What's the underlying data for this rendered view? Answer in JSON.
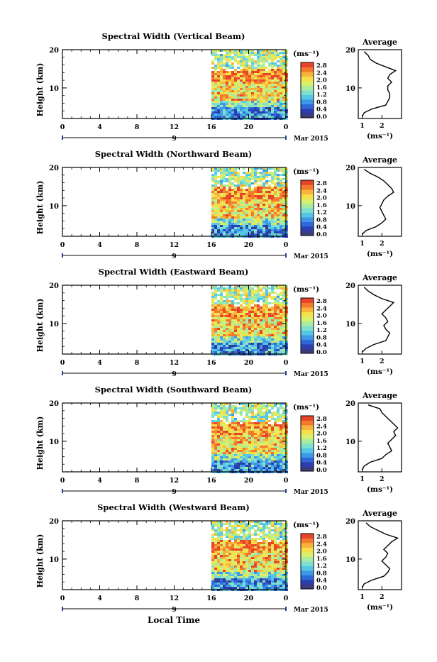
{
  "chart_data": [
    {
      "type": "heatmap",
      "title": "Spectral Width (Vertical Beam)",
      "ylabel": "Height (km)",
      "xticks": [
        "0",
        "4",
        "8",
        "12",
        "16",
        "20",
        "0"
      ],
      "xlim": [
        0,
        24
      ],
      "ylim": [
        2,
        20
      ],
      "yticks": [
        "20",
        "10"
      ],
      "date_marker": "9",
      "date_label": "Mar 2015",
      "data_start_hour": 16,
      "colorbar": {
        "unit": "(ms⁻¹)",
        "ticks": [
          "2.8",
          "2.4",
          "2.0",
          "1.6",
          "1.2",
          "0.8",
          "0.4",
          "0.0"
        ]
      },
      "average": {
        "title": "Average",
        "xlabel": "(ms⁻¹)",
        "xticks": [
          "1",
          "2"
        ],
        "yticks": [
          "20",
          "10"
        ],
        "xlim": [
          0.8,
          3.0
        ],
        "height_km": [
          2.5,
          3.5,
          4.5,
          5.5,
          6.5,
          7.5,
          8.5,
          9.5,
          10.5,
          11.5,
          12.5,
          13.5,
          14.5,
          15.5,
          16.5,
          17.5,
          18.5,
          19.5
        ],
        "values": [
          1.0,
          1.1,
          1.5,
          2.2,
          2.3,
          2.4,
          2.4,
          2.3,
          2.3,
          2.5,
          2.3,
          2.4,
          2.7,
          2.2,
          1.7,
          1.4,
          1.3,
          1.1
        ]
      }
    },
    {
      "type": "heatmap",
      "title": "Spectral Width (Northward Beam)",
      "ylabel": "Height (km)",
      "xticks": [
        "0",
        "4",
        "8",
        "12",
        "16",
        "20",
        "0"
      ],
      "xlim": [
        0,
        24
      ],
      "ylim": [
        2,
        20
      ],
      "yticks": [
        "20",
        "10"
      ],
      "date_marker": "9",
      "date_label": "Mar 2015",
      "data_start_hour": 16,
      "colorbar": {
        "unit": "(ms⁻¹)",
        "ticks": [
          "2.8",
          "2.4",
          "2.0",
          "1.6",
          "1.2",
          "0.8",
          "0.4",
          "0.0"
        ]
      },
      "average": {
        "title": "Average",
        "xlabel": "(ms⁻¹)",
        "xticks": [
          "1",
          "2"
        ],
        "yticks": [
          "20",
          "10"
        ],
        "xlim": [
          0.8,
          3.0
        ],
        "height_km": [
          2.5,
          3.5,
          4.5,
          5.5,
          6.5,
          7.5,
          8.5,
          9.5,
          10.5,
          11.5,
          12.5,
          13.5,
          14.5,
          15.5,
          16.5,
          17.5,
          18.5,
          19.5
        ],
        "values": [
          1.0,
          1.2,
          1.7,
          2.0,
          2.2,
          2.1,
          2.0,
          1.9,
          2.0,
          2.1,
          2.3,
          2.6,
          2.5,
          2.3,
          2.1,
          1.8,
          1.4,
          1.1
        ]
      }
    },
    {
      "type": "heatmap",
      "title": "Spectral Width (Eastward Beam)",
      "ylabel": "Height (km)",
      "xticks": [
        "0",
        "4",
        "8",
        "12",
        "16",
        "20",
        "0"
      ],
      "xlim": [
        0,
        24
      ],
      "ylim": [
        2,
        20
      ],
      "yticks": [
        "20",
        "10"
      ],
      "date_marker": "9",
      "date_label": "Mar 2015",
      "data_start_hour": 16,
      "colorbar": {
        "unit": "(ms⁻¹)",
        "ticks": [
          "2.8",
          "2.4",
          "2.0",
          "1.6",
          "1.2",
          "0.8",
          "0.4",
          "0.0"
        ]
      },
      "average": {
        "title": "Average",
        "xlabel": "(ms⁻¹)",
        "xticks": [
          "1",
          "2"
        ],
        "yticks": [
          "20",
          "10"
        ],
        "xlim": [
          0.8,
          3.0
        ],
        "height_km": [
          2.5,
          3.5,
          4.5,
          5.5,
          6.5,
          7.5,
          8.5,
          9.5,
          10.5,
          11.5,
          12.5,
          13.5,
          14.5,
          15.5,
          16.5,
          17.5,
          18.5,
          19.5
        ],
        "values": [
          1.0,
          1.2,
          1.6,
          2.2,
          2.3,
          2.4,
          2.2,
          2.1,
          2.3,
          2.2,
          2.0,
          2.2,
          2.4,
          2.6,
          2.0,
          1.6,
          1.3,
          1.1
        ]
      }
    },
    {
      "type": "heatmap",
      "title": "Spectral Width (Southward Beam)",
      "ylabel": "Height (km)",
      "xticks": [
        "0",
        "4",
        "8",
        "12",
        "16",
        "20",
        "0"
      ],
      "xlim": [
        0,
        24
      ],
      "ylim": [
        2,
        20
      ],
      "yticks": [
        "20",
        "10"
      ],
      "date_marker": "9",
      "date_label": "Mar 2015",
      "data_start_hour": 16,
      "colorbar": {
        "unit": "(ms⁻¹)",
        "ticks": [
          "2.8",
          "2.4",
          "2.0",
          "1.6",
          "1.2",
          "0.8",
          "0.4",
          "0.0"
        ]
      },
      "average": {
        "title": "Average",
        "xlabel": "(ms⁻¹)",
        "xticks": [
          "1",
          "2"
        ],
        "yticks": [
          "20",
          "10"
        ],
        "xlim": [
          0.8,
          3.0
        ],
        "height_km": [
          2.5,
          3.5,
          4.5,
          5.5,
          6.5,
          7.5,
          8.5,
          9.5,
          10.5,
          11.5,
          12.5,
          13.5,
          14.5,
          15.5,
          16.5,
          17.5,
          18.5,
          19.5
        ],
        "values": [
          1.0,
          1.1,
          1.4,
          2.0,
          2.2,
          2.5,
          2.4,
          2.3,
          2.5,
          2.7,
          2.6,
          2.8,
          2.6,
          2.4,
          2.2,
          2.0,
          1.9,
          1.3
        ]
      }
    },
    {
      "type": "heatmap",
      "title": "Spectral Width (Westward Beam)",
      "ylabel": "Height (km)",
      "xticks": [
        "0",
        "4",
        "8",
        "12",
        "16",
        "20",
        "0"
      ],
      "xlim": [
        0,
        24
      ],
      "ylim": [
        2,
        20
      ],
      "yticks": [
        "20",
        "10"
      ],
      "date_marker": "9",
      "date_label": "Mar 2015",
      "data_start_hour": 16,
      "colorbar": {
        "unit": "(ms⁻¹)",
        "ticks": [
          "2.8",
          "2.4",
          "2.0",
          "1.6",
          "1.2",
          "0.8",
          "0.4",
          "0.0"
        ]
      },
      "average": {
        "title": "Average",
        "xlabel": "(ms⁻¹)",
        "xticks": [
          "1",
          "2"
        ],
        "yticks": [
          "20",
          "10"
        ],
        "xlim": [
          0.8,
          3.0
        ],
        "height_km": [
          2.5,
          3.5,
          4.5,
          5.5,
          6.5,
          7.5,
          8.5,
          9.5,
          10.5,
          11.5,
          12.5,
          13.5,
          14.5,
          15.5,
          16.5,
          17.5,
          18.5,
          19.5
        ],
        "values": [
          1.0,
          1.1,
          1.5,
          2.1,
          2.3,
          2.4,
          2.2,
          2.0,
          2.2,
          2.3,
          2.1,
          2.3,
          2.5,
          2.8,
          2.2,
          1.8,
          1.4,
          1.2
        ]
      }
    }
  ],
  "footer": {
    "xlabel": "Local Time"
  },
  "colormap": [
    "#3b3c7e",
    "#2b3fb0",
    "#2e68d9",
    "#3e9ae8",
    "#56c6e6",
    "#7fe0cf",
    "#a9ec9e",
    "#d8f06c",
    "#f6e04a",
    "#f9b23a",
    "#f4792c",
    "#e8442a"
  ]
}
